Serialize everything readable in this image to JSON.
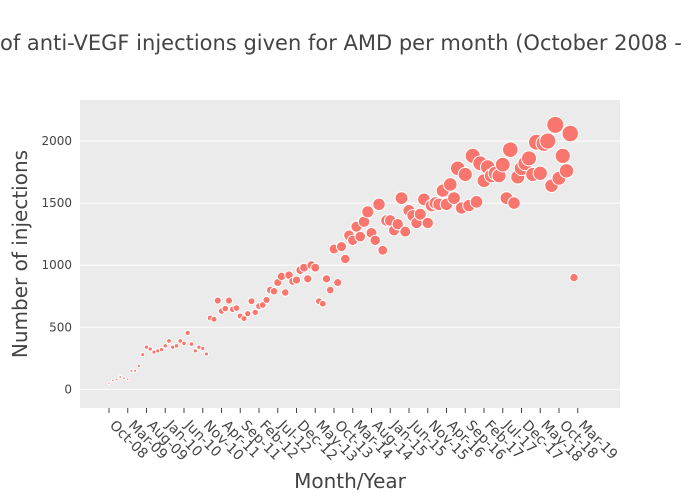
{
  "chart_data": {
    "type": "scatter",
    "title": "of anti-VEGF injections given for AMD per month (October 2008 -",
    "xlabel": "Month/Year",
    "ylabel": "Number of injections",
    "ylim": [
      -150,
      2330
    ],
    "y_ticks": [
      0,
      500,
      1000,
      1500,
      2000
    ],
    "x_tick_labels": [
      "Oct-08",
      "Mar-09",
      "Aug-09",
      "Jan-10",
      "Jun-10",
      "Nov-10",
      "Apr-11",
      "Sep-11",
      "Feb-12",
      "Jul-12",
      "Dec-12",
      "May-13",
      "Oct-13",
      "Mar-14",
      "Aug-14",
      "Jan-15",
      "Jun-15",
      "Nov-15",
      "Apr-16",
      "Sep-16",
      "Feb-17",
      "Jul-17",
      "Dec-17",
      "May-18",
      "Oct-18",
      "Mar-19"
    ],
    "x_start": "Oct-08",
    "x_end": "Jun-19",
    "marker_color": "#f8766d",
    "plot_background": "#ebebeb",
    "grid": true,
    "points": [
      {
        "x": "Oct-08",
        "y": 50
      },
      {
        "x": "Nov-08",
        "y": 70
      },
      {
        "x": "Dec-08",
        "y": 80
      },
      {
        "x": "Jan-09",
        "y": 100
      },
      {
        "x": "Feb-09",
        "y": 90
      },
      {
        "x": "Mar-09",
        "y": 80
      },
      {
        "x": "Apr-09",
        "y": 150
      },
      {
        "x": "May-09",
        "y": 150
      },
      {
        "x": "Jun-09",
        "y": 190
      },
      {
        "x": "Jul-09",
        "y": 280
      },
      {
        "x": "Aug-09",
        "y": 340
      },
      {
        "x": "Sep-09",
        "y": 325
      },
      {
        "x": "Oct-09",
        "y": 300
      },
      {
        "x": "Nov-09",
        "y": 310
      },
      {
        "x": "Dec-09",
        "y": 320
      },
      {
        "x": "Jan-10",
        "y": 350
      },
      {
        "x": "Feb-10",
        "y": 390
      },
      {
        "x": "Mar-10",
        "y": 340
      },
      {
        "x": "Apr-10",
        "y": 350
      },
      {
        "x": "May-10",
        "y": 390
      },
      {
        "x": "Jun-10",
        "y": 370
      },
      {
        "x": "Jul-10",
        "y": 455
      },
      {
        "x": "Aug-10",
        "y": 365
      },
      {
        "x": "Sep-10",
        "y": 310
      },
      {
        "x": "Oct-10",
        "y": 340
      },
      {
        "x": "Nov-10",
        "y": 330
      },
      {
        "x": "Dec-10",
        "y": 285
      },
      {
        "x": "Jan-11",
        "y": 575
      },
      {
        "x": "Feb-11",
        "y": 565
      },
      {
        "x": "Mar-11",
        "y": 715
      },
      {
        "x": "Apr-11",
        "y": 630
      },
      {
        "x": "May-11",
        "y": 650
      },
      {
        "x": "Jun-11",
        "y": 715
      },
      {
        "x": "Jul-11",
        "y": 645
      },
      {
        "x": "Aug-11",
        "y": 655
      },
      {
        "x": "Sep-11",
        "y": 590
      },
      {
        "x": "Oct-11",
        "y": 570
      },
      {
        "x": "Nov-11",
        "y": 610
      },
      {
        "x": "Dec-11",
        "y": 710
      },
      {
        "x": "Jan-12",
        "y": 620
      },
      {
        "x": "Feb-12",
        "y": 670
      },
      {
        "x": "Mar-12",
        "y": 680
      },
      {
        "x": "Apr-12",
        "y": 720
      },
      {
        "x": "May-12",
        "y": 800
      },
      {
        "x": "Jun-12",
        "y": 790
      },
      {
        "x": "Jul-12",
        "y": 860
      },
      {
        "x": "Aug-12",
        "y": 910
      },
      {
        "x": "Sep-12",
        "y": 780
      },
      {
        "x": "Oct-12",
        "y": 920
      },
      {
        "x": "Nov-12",
        "y": 870
      },
      {
        "x": "Dec-12",
        "y": 880
      },
      {
        "x": "Jan-13",
        "y": 960
      },
      {
        "x": "Feb-13",
        "y": 980
      },
      {
        "x": "Mar-13",
        "y": 890
      },
      {
        "x": "Apr-13",
        "y": 1000
      },
      {
        "x": "May-13",
        "y": 980
      },
      {
        "x": "Jun-13",
        "y": 710
      },
      {
        "x": "Jul-13",
        "y": 690
      },
      {
        "x": "Aug-13",
        "y": 890
      },
      {
        "x": "Sep-13",
        "y": 800
      },
      {
        "x": "Oct-13",
        "y": 1130
      },
      {
        "x": "Nov-13",
        "y": 860
      },
      {
        "x": "Dec-13",
        "y": 1150
      },
      {
        "x": "Jan-14",
        "y": 1050
      },
      {
        "x": "Feb-14",
        "y": 1240
      },
      {
        "x": "Mar-14",
        "y": 1200
      },
      {
        "x": "Apr-14",
        "y": 1310
      },
      {
        "x": "May-14",
        "y": 1230
      },
      {
        "x": "Jun-14",
        "y": 1350
      },
      {
        "x": "Jul-14",
        "y": 1430
      },
      {
        "x": "Aug-14",
        "y": 1260
      },
      {
        "x": "Sep-14",
        "y": 1200
      },
      {
        "x": "Oct-14",
        "y": 1490
      },
      {
        "x": "Nov-14",
        "y": 1120
      },
      {
        "x": "Dec-14",
        "y": 1360
      },
      {
        "x": "Jan-15",
        "y": 1360
      },
      {
        "x": "Feb-15",
        "y": 1280
      },
      {
        "x": "Mar-15",
        "y": 1330
      },
      {
        "x": "Apr-15",
        "y": 1540
      },
      {
        "x": "May-15",
        "y": 1270
      },
      {
        "x": "Jun-15",
        "y": 1440
      },
      {
        "x": "Jul-15",
        "y": 1400
      },
      {
        "x": "Aug-15",
        "y": 1340
      },
      {
        "x": "Sep-15",
        "y": 1410
      },
      {
        "x": "Oct-15",
        "y": 1530
      },
      {
        "x": "Nov-15",
        "y": 1340
      },
      {
        "x": "Dec-15",
        "y": 1480
      },
      {
        "x": "Jan-16",
        "y": 1500
      },
      {
        "x": "Feb-16",
        "y": 1490
      },
      {
        "x": "Mar-16",
        "y": 1600
      },
      {
        "x": "Apr-16",
        "y": 1490
      },
      {
        "x": "May-16",
        "y": 1650
      },
      {
        "x": "Jun-16",
        "y": 1540
      },
      {
        "x": "Jul-16",
        "y": 1780
      },
      {
        "x": "Aug-16",
        "y": 1460
      },
      {
        "x": "Sep-16",
        "y": 1730
      },
      {
        "x": "Oct-16",
        "y": 1480
      },
      {
        "x": "Nov-16",
        "y": 1880
      },
      {
        "x": "Dec-16",
        "y": 1510
      },
      {
        "x": "Jan-17",
        "y": 1820
      },
      {
        "x": "Feb-17",
        "y": 1680
      },
      {
        "x": "Mar-17",
        "y": 1790
      },
      {
        "x": "Apr-17",
        "y": 1720
      },
      {
        "x": "May-17",
        "y": 1740
      },
      {
        "x": "Jun-17",
        "y": 1720
      },
      {
        "x": "Jul-17",
        "y": 1810
      },
      {
        "x": "Aug-17",
        "y": 1540
      },
      {
        "x": "Sep-17",
        "y": 1930
      },
      {
        "x": "Oct-17",
        "y": 1500
      },
      {
        "x": "Nov-17",
        "y": 1710
      },
      {
        "x": "Dec-17",
        "y": 1780
      },
      {
        "x": "Jan-18",
        "y": 1820
      },
      {
        "x": "Feb-18",
        "y": 1860
      },
      {
        "x": "Mar-18",
        "y": 1730
      },
      {
        "x": "Apr-18",
        "y": 1990
      },
      {
        "x": "May-18",
        "y": 1740
      },
      {
        "x": "Jun-18",
        "y": 1980
      },
      {
        "x": "Jul-18",
        "y": 2000
      },
      {
        "x": "Aug-18",
        "y": 1640
      },
      {
        "x": "Sep-18",
        "y": 2130
      },
      {
        "x": "Oct-18",
        "y": 1700
      },
      {
        "x": "Nov-18",
        "y": 1880
      },
      {
        "x": "Dec-18",
        "y": 1760
      },
      {
        "x": "Jan-19",
        "y": 2060
      },
      {
        "x": "Feb-19",
        "y": 900
      }
    ]
  }
}
